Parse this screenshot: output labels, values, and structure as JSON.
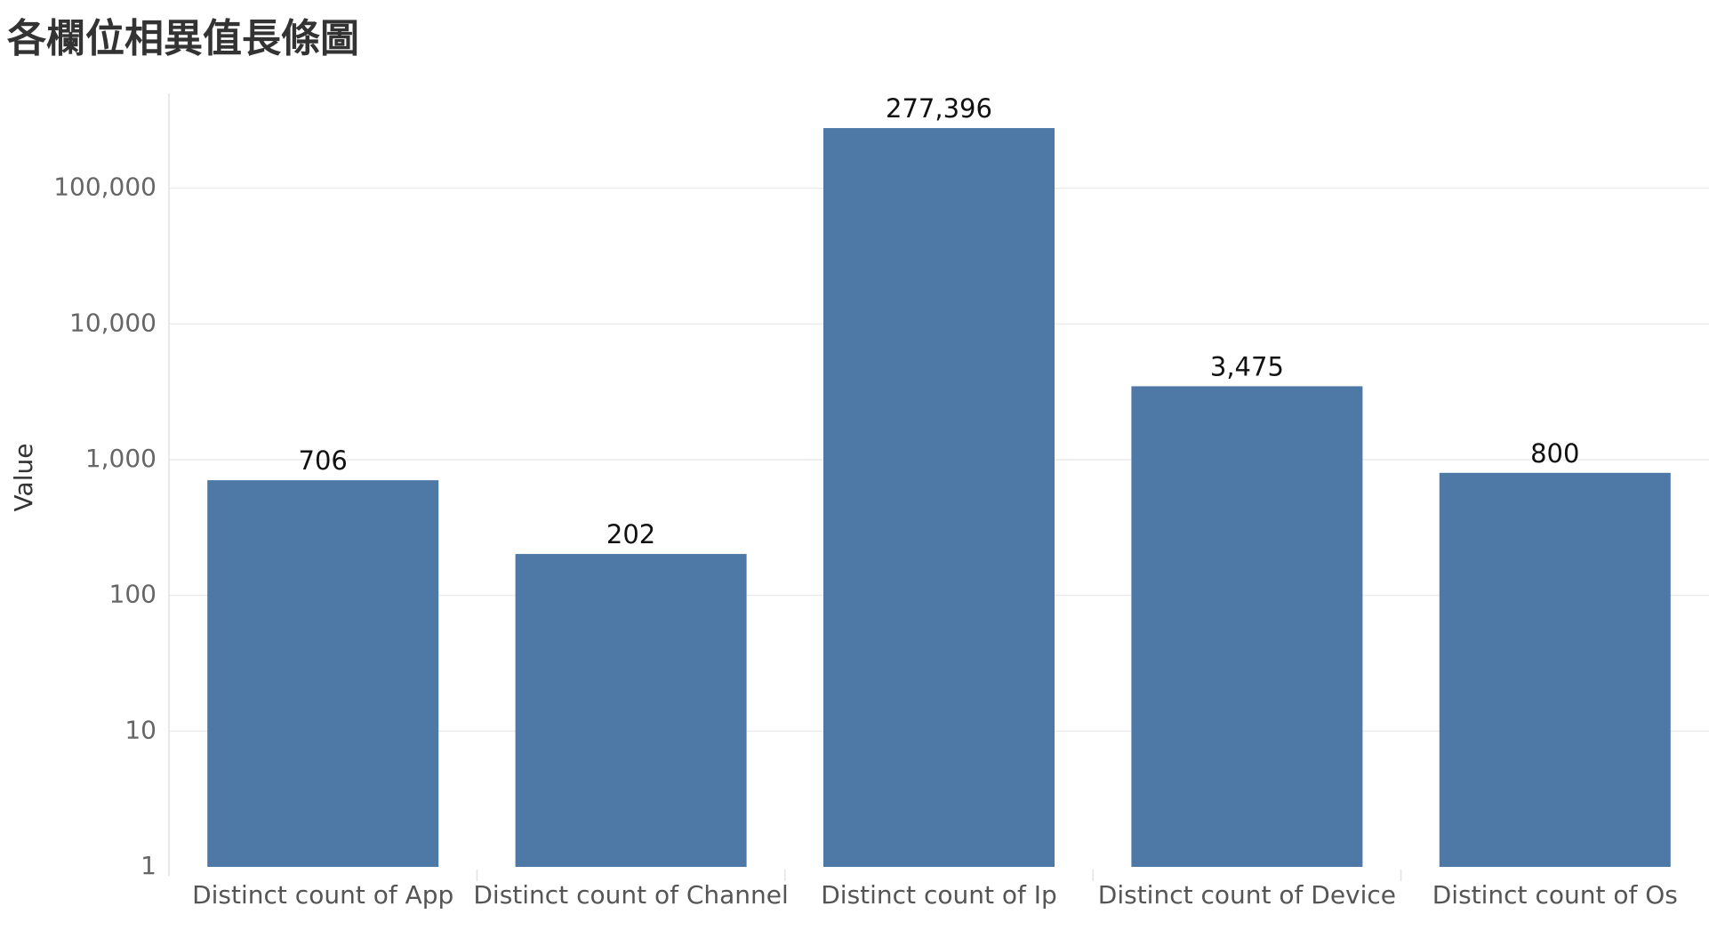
{
  "chart_data": {
    "type": "bar",
    "title": "各欄位相異值長條圖",
    "xlabel": "",
    "ylabel": "Value",
    "yscale": "log",
    "ylim": [
      1,
      500000
    ],
    "yticks": [
      1,
      10,
      100,
      1000,
      10000,
      100000
    ],
    "ytick_labels": [
      "1",
      "10",
      "100",
      "1,000",
      "10,000",
      "100,000"
    ],
    "categories": [
      "Distinct count of App",
      "Distinct count of Channel",
      "Distinct count of Ip",
      "Distinct count of Device",
      "Distinct count of Os"
    ],
    "values": [
      706,
      202,
      277396,
      3475,
      800
    ],
    "value_labels": [
      "706",
      "202",
      "277,396",
      "3,475",
      "800"
    ],
    "bar_color": "#4e79a7",
    "grid": true,
    "legend": "none"
  }
}
